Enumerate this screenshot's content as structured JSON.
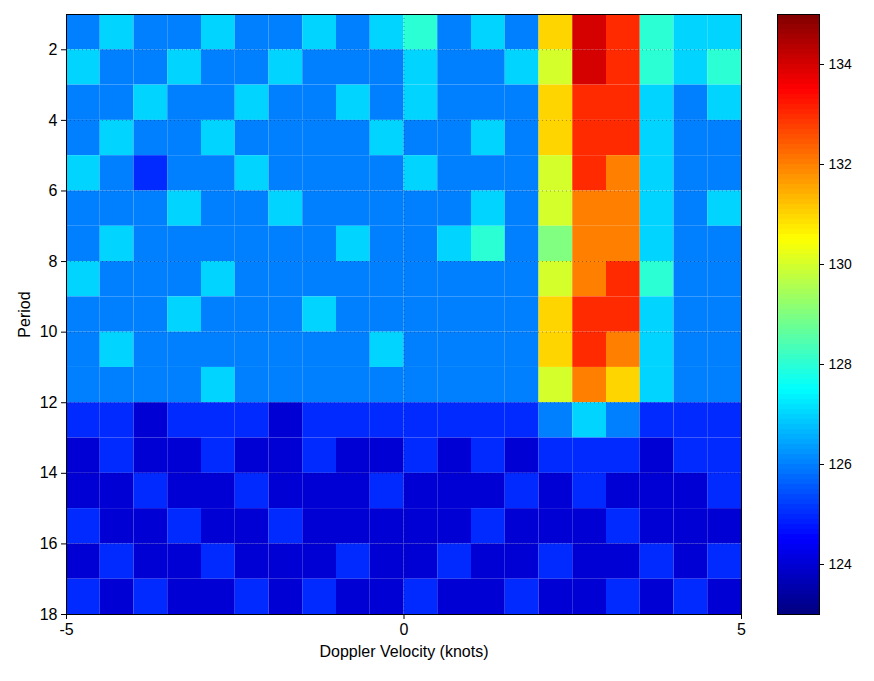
{
  "chart_data": {
    "type": "heatmap",
    "xlabel": "Doppler Velocity (knots)",
    "ylabel": "Period",
    "xlim": [
      -5,
      5
    ],
    "ylim": [
      1,
      18
    ],
    "xticks": [
      -5,
      0,
      5
    ],
    "yticks": [
      2,
      4,
      6,
      8,
      10,
      12,
      14,
      16,
      18
    ],
    "grid": true,
    "x_edges": [
      -5,
      -4.5,
      -4,
      -3.5,
      -3,
      -2.5,
      -2,
      -1.5,
      -1,
      -0.5,
      0,
      0.5,
      1,
      1.5,
      2,
      2.5,
      3,
      3.5,
      4,
      4.5,
      5
    ],
    "y_edges": [
      1,
      2,
      3,
      4,
      5,
      6,
      7,
      8,
      9,
      10,
      11,
      12,
      13,
      14,
      15,
      16,
      17,
      18
    ],
    "cells": [
      [
        126,
        127,
        126,
        126,
        127,
        126,
        126,
        127,
        126,
        127,
        128,
        126,
        127,
        126,
        131,
        134,
        133,
        128,
        127,
        127
      ],
      [
        127,
        126,
        126,
        127,
        126,
        126,
        127,
        126,
        126,
        126,
        127,
        126,
        126,
        127,
        130,
        134,
        133,
        128,
        127,
        128
      ],
      [
        126,
        126,
        127,
        126,
        126,
        127,
        126,
        126,
        127,
        126,
        127,
        126,
        126,
        126,
        131,
        133,
        133,
        127,
        126,
        127
      ],
      [
        126,
        127,
        126,
        126,
        127,
        126,
        126,
        126,
        126,
        127,
        126,
        126,
        127,
        126,
        131,
        133,
        133,
        127,
        126,
        126
      ],
      [
        127,
        126,
        125,
        126,
        126,
        127,
        126,
        126,
        126,
        126,
        127,
        126,
        126,
        126,
        130,
        133,
        132,
        127,
        126,
        126
      ],
      [
        126,
        126,
        126,
        127,
        126,
        126,
        127,
        126,
        126,
        126,
        126,
        126,
        127,
        126,
        130,
        132,
        132,
        127,
        126,
        127
      ],
      [
        126,
        127,
        126,
        126,
        126,
        126,
        126,
        126,
        127,
        126,
        126,
        127,
        128,
        126,
        129,
        132,
        132,
        127,
        126,
        126
      ],
      [
        127,
        126,
        126,
        126,
        127,
        126,
        126,
        126,
        126,
        126,
        126,
        126,
        126,
        126,
        130,
        132,
        133,
        128,
        126,
        126
      ],
      [
        126,
        126,
        126,
        127,
        126,
        126,
        126,
        127,
        126,
        126,
        126,
        126,
        126,
        126,
        131,
        133,
        133,
        127,
        126,
        126
      ],
      [
        126,
        127,
        126,
        126,
        126,
        126,
        126,
        126,
        126,
        127,
        126,
        126,
        126,
        126,
        131,
        133,
        132,
        127,
        126,
        126
      ],
      [
        126,
        126,
        126,
        126,
        127,
        126,
        126,
        126,
        126,
        126,
        126,
        126,
        126,
        126,
        130,
        132,
        131,
        127,
        126,
        126
      ],
      [
        125,
        125,
        124,
        125,
        125,
        125,
        124,
        125,
        125,
        125,
        125,
        125,
        125,
        125,
        126,
        127,
        126,
        125,
        125,
        125
      ],
      [
        124,
        125,
        124,
        124,
        125,
        124,
        124,
        125,
        124,
        124,
        125,
        124,
        125,
        124,
        125,
        125,
        125,
        124,
        125,
        125
      ],
      [
        124,
        124,
        125,
        124,
        124,
        125,
        124,
        124,
        124,
        125,
        124,
        124,
        124,
        125,
        124,
        125,
        124,
        124,
        124,
        125
      ],
      [
        125,
        124,
        124,
        125,
        124,
        124,
        125,
        124,
        124,
        124,
        124,
        124,
        125,
        124,
        124,
        124,
        125,
        124,
        124,
        124
      ],
      [
        124,
        125,
        124,
        124,
        125,
        124,
        124,
        124,
        125,
        124,
        124,
        125,
        124,
        124,
        125,
        124,
        124,
        125,
        124,
        125
      ],
      [
        125,
        124,
        125,
        124,
        124,
        125,
        124,
        125,
        124,
        124,
        125,
        124,
        124,
        125,
        124,
        124,
        125,
        124,
        125,
        124
      ]
    ],
    "colorbar_lim": [
      123,
      135
    ],
    "colorbar_ticks": [
      124,
      126,
      128,
      130,
      132,
      134
    ]
  }
}
